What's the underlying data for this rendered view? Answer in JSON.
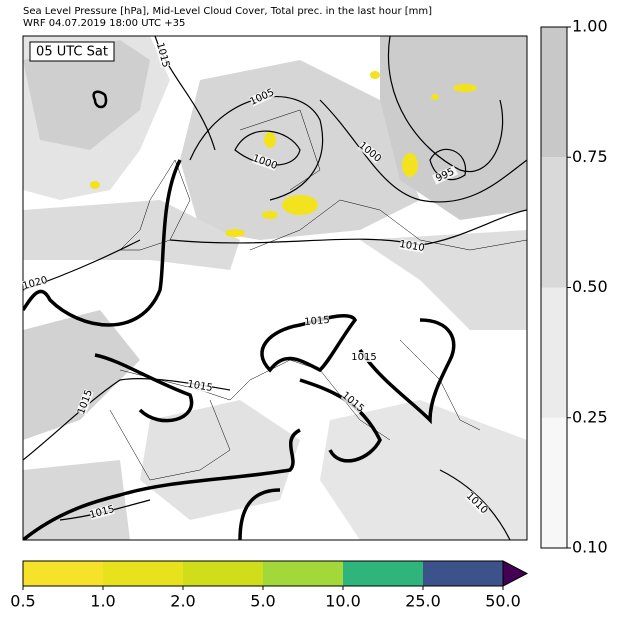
{
  "header": {
    "title": "Sea Level Pressure [hPa], Mid-Level Cloud Cover, Total prec. in the last hour [mm]",
    "subtitle": "WRF 04.07.2019 18:00 UTC +35"
  },
  "map": {
    "time_label": "05 UTC Sat",
    "contour_labels": [
      "1015",
      "1005",
      "1000",
      "1000",
      "995",
      "1010",
      "1020",
      "1015",
      "1015",
      "1015",
      "1015",
      "1015",
      "1010",
      "1015"
    ]
  },
  "cloud_colorbar": {
    "colors": [
      "#f7f7f7",
      "#ebebeb",
      "#d9d9d9",
      "#c8c8c8"
    ],
    "ticks": [
      {
        "value": 0.1,
        "label": "0.10"
      },
      {
        "value": 0.25,
        "label": "0.25"
      },
      {
        "value": 0.5,
        "label": "0.50"
      },
      {
        "value": 0.75,
        "label": "0.75"
      },
      {
        "value": 1,
        "label": "1.00"
      }
    ]
  },
  "precip_colorbar": {
    "colors": [
      "#f7e22a",
      "#e8e21c",
      "#cfdd1a",
      "#a2d83a",
      "#2fb47c",
      "#3b528b"
    ],
    "extend_color": "#440154",
    "ticks": [
      0.5,
      {
        "value": 1,
        "label": "1.0"
      },
      {
        "value": 2,
        "label": "2.0"
      },
      {
        "value": 5,
        "label": "5.0"
      },
      {
        "value": 10,
        "label": "10.0"
      },
      {
        "value": 25,
        "label": "25.0"
      },
      {
        "value": 50,
        "label": "50.0"
      }
    ]
  }
}
